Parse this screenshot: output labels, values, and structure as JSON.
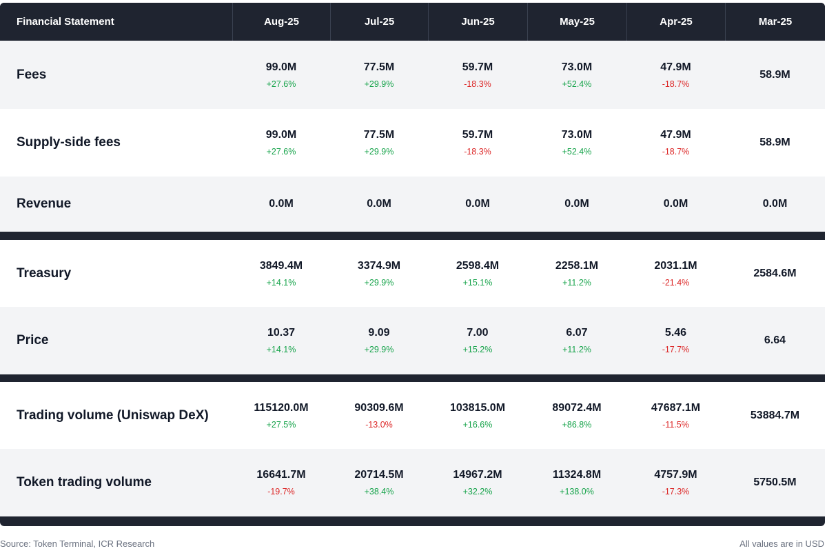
{
  "table": {
    "header": {
      "label": "Financial Statement",
      "months": [
        "Aug-25",
        "Jul-25",
        "Jun-25",
        "May-25",
        "Apr-25",
        "Mar-25"
      ]
    },
    "rows": [
      {
        "label": "Fees",
        "cells": [
          {
            "value": "99.0M",
            "change": "+27.6%",
            "dir": "pos"
          },
          {
            "value": "77.5M",
            "change": "+29.9%",
            "dir": "pos"
          },
          {
            "value": "59.7M",
            "change": "-18.3%",
            "dir": "neg"
          },
          {
            "value": "73.0M",
            "change": "+52.4%",
            "dir": "pos"
          },
          {
            "value": "47.9M",
            "change": "-18.7%",
            "dir": "neg"
          },
          {
            "value": "58.9M",
            "change": "",
            "dir": ""
          }
        ]
      },
      {
        "label": "Supply-side fees",
        "cells": [
          {
            "value": "99.0M",
            "change": "+27.6%",
            "dir": "pos"
          },
          {
            "value": "77.5M",
            "change": "+29.9%",
            "dir": "pos"
          },
          {
            "value": "59.7M",
            "change": "-18.3%",
            "dir": "neg"
          },
          {
            "value": "73.0M",
            "change": "+52.4%",
            "dir": "pos"
          },
          {
            "value": "47.9M",
            "change": "-18.7%",
            "dir": "neg"
          },
          {
            "value": "58.9M",
            "change": "",
            "dir": ""
          }
        ]
      },
      {
        "label": "Revenue",
        "cells": [
          {
            "value": "0.0M",
            "change": "",
            "dir": ""
          },
          {
            "value": "0.0M",
            "change": "",
            "dir": ""
          },
          {
            "value": "0.0M",
            "change": "",
            "dir": ""
          },
          {
            "value": "0.0M",
            "change": "",
            "dir": ""
          },
          {
            "value": "0.0M",
            "change": "",
            "dir": ""
          },
          {
            "value": "0.0M",
            "change": "",
            "dir": ""
          }
        ]
      },
      {
        "label": "Treasury",
        "cells": [
          {
            "value": "3849.4M",
            "change": "+14.1%",
            "dir": "pos"
          },
          {
            "value": "3374.9M",
            "change": "+29.9%",
            "dir": "pos"
          },
          {
            "value": "2598.4M",
            "change": "+15.1%",
            "dir": "pos"
          },
          {
            "value": "2258.1M",
            "change": "+11.2%",
            "dir": "pos"
          },
          {
            "value": "2031.1M",
            "change": "-21.4%",
            "dir": "neg"
          },
          {
            "value": "2584.6M",
            "change": "",
            "dir": ""
          }
        ]
      },
      {
        "label": "Price",
        "cells": [
          {
            "value": "10.37",
            "change": "+14.1%",
            "dir": "pos"
          },
          {
            "value": "9.09",
            "change": "+29.9%",
            "dir": "pos"
          },
          {
            "value": "7.00",
            "change": "+15.2%",
            "dir": "pos"
          },
          {
            "value": "6.07",
            "change": "+11.2%",
            "dir": "pos"
          },
          {
            "value": "5.46",
            "change": "-17.7%",
            "dir": "neg"
          },
          {
            "value": "6.64",
            "change": "",
            "dir": ""
          }
        ]
      },
      {
        "label": "Trading volume (Uniswap DeX)",
        "cells": [
          {
            "value": "115120.0M",
            "change": "+27.5%",
            "dir": "pos"
          },
          {
            "value": "90309.6M",
            "change": "-13.0%",
            "dir": "neg"
          },
          {
            "value": "103815.0M",
            "change": "+16.6%",
            "dir": "pos"
          },
          {
            "value": "89072.4M",
            "change": "+86.8%",
            "dir": "pos"
          },
          {
            "value": "47687.1M",
            "change": "-11.5%",
            "dir": "neg"
          },
          {
            "value": "53884.7M",
            "change": "",
            "dir": ""
          }
        ]
      },
      {
        "label": "Token trading volume",
        "cells": [
          {
            "value": "16641.7M",
            "change": "-19.7%",
            "dir": "neg"
          },
          {
            "value": "20714.5M",
            "change": "+38.4%",
            "dir": "pos"
          },
          {
            "value": "14967.2M",
            "change": "+32.2%",
            "dir": "pos"
          },
          {
            "value": "11324.8M",
            "change": "+138.0%",
            "dir": "pos"
          },
          {
            "value": "4757.9M",
            "change": "-17.3%",
            "dir": "neg"
          },
          {
            "value": "5750.5M",
            "change": "",
            "dir": ""
          }
        ]
      }
    ]
  },
  "footer": {
    "source": "Source: Token Terminal, ICR Research",
    "note": "All values are in USD"
  },
  "colors": {
    "header_bg": "#1f2430",
    "positive": "#16a34a",
    "negative": "#dc2626",
    "row_alt": "#f3f4f6",
    "row_white": "#ffffff"
  }
}
